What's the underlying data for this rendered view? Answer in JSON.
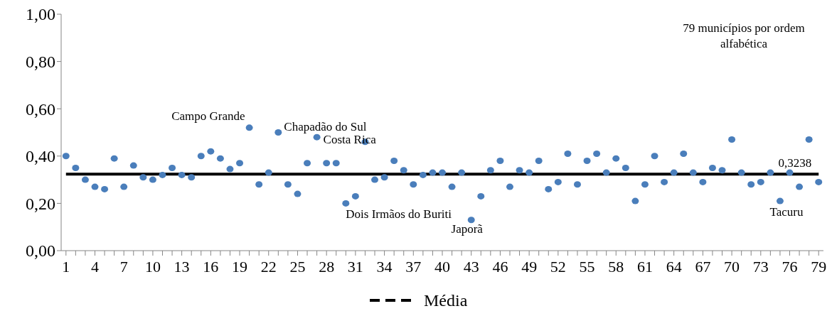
{
  "chart_data": {
    "type": "scatter",
    "legend": "bottom",
    "grid": false,
    "xlim": [
      0.5,
      79.5
    ],
    "xticks": [
      1,
      {
        "value": 2,
        "label": null
      },
      {
        "value": 3,
        "label": null
      },
      4,
      {
        "value": 5,
        "label": null
      },
      {
        "value": 6,
        "label": null
      },
      7,
      {
        "value": 8,
        "label": null
      },
      {
        "value": 9,
        "label": null
      },
      10,
      {
        "value": 11,
        "label": null
      },
      {
        "value": 12,
        "label": null
      },
      13,
      {
        "value": 14,
        "label": null
      },
      {
        "value": 15,
        "label": null
      },
      16,
      {
        "value": 17,
        "label": null
      },
      {
        "value": 18,
        "label": null
      },
      19,
      {
        "value": 20,
        "label": null
      },
      {
        "value": 21,
        "label": null
      },
      22,
      {
        "value": 23,
        "label": null
      },
      {
        "value": 24,
        "label": null
      },
      25,
      {
        "value": 26,
        "label": null
      },
      {
        "value": 27,
        "label": null
      },
      28,
      {
        "value": 29,
        "label": null
      },
      {
        "value": 30,
        "label": null
      },
      31,
      {
        "value": 32,
        "label": null
      },
      {
        "value": 33,
        "label": null
      },
      34,
      {
        "value": 35,
        "label": null
      },
      {
        "value": 36,
        "label": null
      },
      37,
      {
        "value": 38,
        "label": null
      },
      {
        "value": 39,
        "label": null
      },
      40,
      {
        "value": 41,
        "label": null
      },
      {
        "value": 42,
        "label": null
      },
      43,
      {
        "value": 44,
        "label": null
      },
      {
        "value": 45,
        "label": null
      },
      46,
      {
        "value": 47,
        "label": null
      },
      {
        "value": 48,
        "label": null
      },
      49,
      {
        "value": 50,
        "label": null
      },
      {
        "value": 51,
        "label": null
      },
      52,
      {
        "value": 53,
        "label": null
      },
      {
        "value": 54,
        "label": null
      },
      55,
      {
        "value": 56,
        "label": null
      },
      {
        "value": 57,
        "label": null
      },
      58,
      {
        "value": 59,
        "label": null
      },
      {
        "value": 60,
        "label": null
      },
      61,
      {
        "value": 62,
        "label": null
      },
      {
        "value": 63,
        "label": null
      },
      64,
      {
        "value": 65,
        "label": null
      },
      {
        "value": 66,
        "label": null
      },
      67,
      {
        "value": 68,
        "label": null
      },
      {
        "value": 69,
        "label": null
      },
      70,
      {
        "value": 71,
        "label": null
      },
      {
        "value": 72,
        "label": null
      },
      73,
      {
        "value": 74,
        "label": null
      },
      {
        "value": 75,
        "label": null
      },
      76,
      {
        "value": 77,
        "label": null
      },
      {
        "value": 78,
        "label": null
      },
      79
    ],
    "ylim": [
      0,
      1
    ],
    "yticks": [
      {
        "value": 0,
        "label": "0,00"
      },
      {
        "value": 0.2,
        "label": "0,20"
      },
      {
        "value": 0.4,
        "label": "0,40"
      },
      {
        "value": 0.6,
        "label": "0,60"
      },
      {
        "value": 0.8,
        "label": "0,80"
      },
      {
        "value": 1,
        "label": "1,00"
      }
    ],
    "series": [
      {
        "color": "#4a7ebb",
        "marker": "circle",
        "x": [
          1,
          2,
          3,
          4,
          5,
          6,
          7,
          8,
          9,
          10,
          11,
          12,
          13,
          14,
          15,
          16,
          17,
          18,
          19,
          20,
          21,
          22,
          23,
          24,
          25,
          26,
          27,
          28,
          29,
          30,
          31,
          32,
          33,
          34,
          35,
          36,
          37,
          38,
          39,
          40,
          41,
          42,
          43,
          44,
          45,
          46,
          47,
          48,
          49,
          50,
          51,
          52,
          53,
          54,
          55,
          56,
          57,
          58,
          59,
          60,
          61,
          62,
          63,
          64,
          65,
          66,
          67,
          68,
          69,
          70,
          71,
          72,
          73,
          74,
          75,
          76,
          77,
          78,
          79
        ],
        "values": [
          0.4,
          0.35,
          0.3,
          0.27,
          0.26,
          0.39,
          0.27,
          0.36,
          0.31,
          0.3,
          0.32,
          0.35,
          0.32,
          0.31,
          0.4,
          0.42,
          0.39,
          0.345,
          0.37,
          0.52,
          0.28,
          0.33,
          0.5,
          0.28,
          0.24,
          0.37,
          0.48,
          0.37,
          0.37,
          0.2,
          0.23,
          0.46,
          0.3,
          0.31,
          0.38,
          0.34,
          0.28,
          0.32,
          0.33,
          0.33,
          0.27,
          0.33,
          0.13,
          0.23,
          0.34,
          0.38,
          0.27,
          0.34,
          0.33,
          0.38,
          0.26,
          0.29,
          0.41,
          0.28,
          0.38,
          0.41,
          0.33,
          0.39,
          0.35,
          0.21,
          0.28,
          0.4,
          0.29,
          0.33,
          0.41,
          0.33,
          0.29,
          0.35,
          0.34,
          0.47,
          0.33,
          0.28,
          0.29,
          0.33,
          0.21,
          0.33,
          0.27,
          0.47,
          0.29
        ]
      },
      {
        "type": "line",
        "name": "Média",
        "color": "#000000",
        "marker": "none",
        "x": [
          1,
          79
        ],
        "values": [
          0.3238,
          0.3238
        ]
      }
    ],
    "annotations": [
      {
        "text": "Campo Grande",
        "x": 20,
        "y": 0.52
      },
      {
        "text": "Chapadão do Sul",
        "x": 23,
        "y": 0.5
      },
      {
        "text": "Costa Rica",
        "x": 27,
        "y": 0.48
      },
      {
        "text": "Dois Irmãos do Buriti",
        "x": 30,
        "y": 0.2
      },
      {
        "text": "Japorã",
        "x": 43,
        "y": 0.13
      },
      {
        "text": "Tacuru",
        "x": 75,
        "y": 0.21
      },
      {
        "text": "0,3238",
        "x": 79,
        "y": 0.3238
      },
      "79 municípios por ordem alfabética"
    ]
  }
}
